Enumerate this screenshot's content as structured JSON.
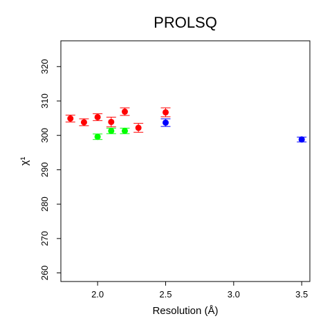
{
  "chart_data": {
    "type": "scatter",
    "title": "PROLSQ",
    "xlabel": "Resolution (Å)",
    "ylabel": "χ¹",
    "xlim": [
      1.73,
      3.56
    ],
    "ylim": [
      257.5,
      327.5
    ],
    "xticks": [
      2.0,
      2.5,
      3.0,
      3.5
    ],
    "xtick_labels": [
      "2.0",
      "2.5",
      "3.0",
      "3.5"
    ],
    "yticks": [
      260,
      270,
      280,
      290,
      300,
      310,
      320
    ],
    "ytick_labels": [
      "260",
      "270",
      "280",
      "290",
      "300",
      "310",
      "320"
    ],
    "grid": false,
    "legend": "none",
    "series": [
      {
        "color": "#ff0000",
        "points": [
          {
            "x": 1.8,
            "y": 304.9,
            "err": 1.0
          },
          {
            "x": 1.9,
            "y": 303.8,
            "err": 1.0
          },
          {
            "x": 2.0,
            "y": 305.3,
            "err": 1.0
          },
          {
            "x": 2.1,
            "y": 303.9,
            "err": 1.4
          },
          {
            "x": 2.2,
            "y": 306.9,
            "err": 1.1
          },
          {
            "x": 2.3,
            "y": 302.2,
            "err": 1.3
          },
          {
            "x": 2.5,
            "y": 306.7,
            "err": 1.3
          }
        ]
      },
      {
        "color": "#00ff00",
        "points": [
          {
            "x": 2.0,
            "y": 299.6,
            "err": 0.8
          },
          {
            "x": 2.1,
            "y": 301.3,
            "err": 0.8
          },
          {
            "x": 2.2,
            "y": 301.3,
            "err": 0.8
          }
        ]
      },
      {
        "color": "#0000ff",
        "points": [
          {
            "x": 2.5,
            "y": 303.7,
            "err": 1.1
          },
          {
            "x": 3.5,
            "y": 298.8,
            "err": 0.7
          }
        ]
      }
    ]
  }
}
